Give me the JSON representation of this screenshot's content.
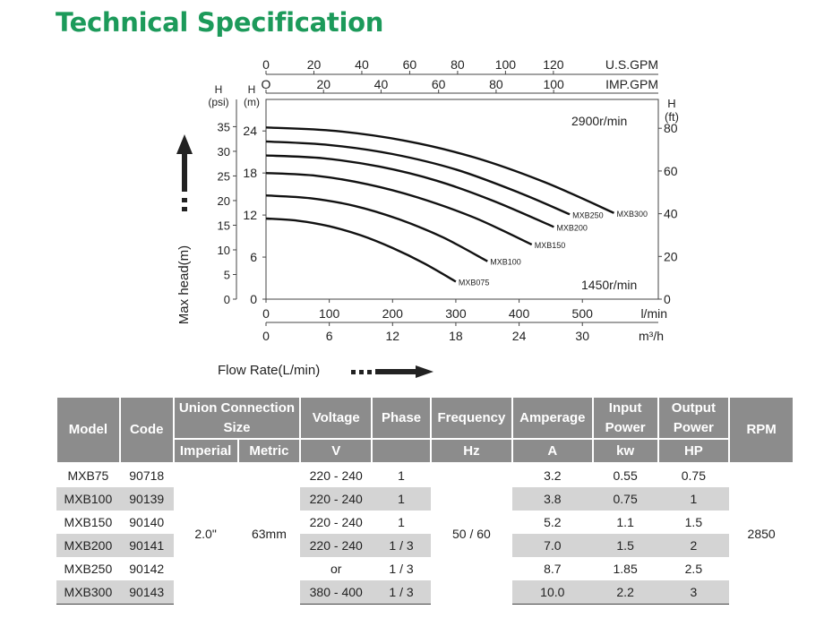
{
  "page": {
    "title": "Technical Specification"
  },
  "chart_data": {
    "type": "line",
    "x_axes": {
      "us_gpm": {
        "label": "U.S.GPM",
        "ticks": [
          "0",
          "20",
          "40",
          "60",
          "80",
          "100",
          "120"
        ],
        "values": [
          0,
          20,
          40,
          60,
          80,
          100,
          120
        ]
      },
      "imp_gpm": {
        "label": "IMP.GPM",
        "ticks": [
          "O",
          "20",
          "40",
          "60",
          "80",
          "100"
        ],
        "values": [
          0,
          20,
          40,
          60,
          80,
          100
        ]
      },
      "lmin": {
        "label": "l/min",
        "ticks": [
          "0",
          "100",
          "200",
          "300",
          "400",
          "500"
        ],
        "values": [
          0,
          100,
          200,
          300,
          400,
          500
        ],
        "range": [
          0,
          620
        ]
      },
      "m3h": {
        "label": "m³/h",
        "ticks": [
          "0",
          "6",
          "12",
          "18",
          "24",
          "30"
        ],
        "values": [
          0,
          6,
          12,
          18,
          24,
          30
        ]
      }
    },
    "y_axes": {
      "psi": {
        "label_top": "H",
        "label_unit": "(psi)",
        "ticks": [
          "0",
          "5",
          "10",
          "15",
          "20",
          "25",
          "30",
          "35"
        ],
        "values": [
          0,
          5,
          10,
          15,
          20,
          25,
          30,
          35
        ]
      },
      "m": {
        "label_top": "H",
        "label_unit": "(m)",
        "ticks": [
          "0",
          "6",
          "12",
          "18",
          "24"
        ],
        "values": [
          0,
          6,
          12,
          18,
          24
        ],
        "range": [
          0,
          28.5
        ]
      },
      "ft": {
        "label_top": "H",
        "label_unit": "(ft)",
        "ticks": [
          "0",
          "20",
          "40",
          "60",
          "80"
        ],
        "values": [
          0,
          20,
          40,
          60,
          80
        ]
      }
    },
    "annotations": {
      "speed_high": "2900r/min",
      "speed_low": "1450r/min"
    },
    "ylabel": "Max head(m)",
    "xlabel": "Flow Rate(L/min)",
    "series": [
      {
        "name": "MXB075",
        "x": [
          0,
          50,
          100,
          150,
          200,
          250,
          300
        ],
        "y": [
          11.5,
          11.2,
          10.4,
          9.1,
          7.3,
          5.1,
          2.5
        ]
      },
      {
        "name": "MXB100",
        "x": [
          0,
          70,
          140,
          210,
          280,
          350
        ],
        "y": [
          14.8,
          14.4,
          13.3,
          11.4,
          8.8,
          5.4
        ]
      },
      {
        "name": "MXB150",
        "x": [
          0,
          80,
          160,
          240,
          330,
          420
        ],
        "y": [
          18.0,
          17.6,
          16.4,
          14.5,
          11.6,
          7.8
        ]
      },
      {
        "name": "MXB200",
        "x": [
          0,
          90,
          180,
          270,
          360,
          455
        ],
        "y": [
          20.5,
          20.1,
          18.9,
          16.9,
          14.0,
          10.3
        ]
      },
      {
        "name": "MXB250",
        "x": [
          0,
          100,
          200,
          300,
          400,
          480
        ],
        "y": [
          22.5,
          22.0,
          20.7,
          18.5,
          15.2,
          12.1
        ]
      },
      {
        "name": "MXB300",
        "x": [
          0,
          110,
          220,
          330,
          440,
          550
        ],
        "y": [
          24.5,
          24.0,
          22.6,
          20.2,
          16.7,
          12.3
        ]
      }
    ]
  },
  "table": {
    "headers": {
      "model": "Model",
      "code": "Code",
      "union": "Union Connection Size",
      "imperial": "Imperial",
      "metric": "Metric",
      "voltage": "Voltage",
      "voltage_unit": "V",
      "phase": "Phase",
      "frequency": "Frequency",
      "frequency_unit": "Hz",
      "amperage": "Amperage",
      "amperage_unit": "A",
      "input_power": "Input Power",
      "input_unit": "kw",
      "output_power": "Output Power",
      "output_unit": "HP",
      "rpm": "RPM"
    },
    "imperial": "2.0\"",
    "metric": "63mm",
    "frequency": "50 / 60",
    "rpm": "2850",
    "rows": [
      {
        "model": "MXB75",
        "code": "90718",
        "voltage": "220 - 240",
        "phase": "1",
        "amperage": "3.2",
        "input": "0.55",
        "output": "0.75"
      },
      {
        "model": "MXB100",
        "code": "90139",
        "voltage": "220 - 240",
        "phase": "1",
        "amperage": "3.8",
        "input": "0.75",
        "output": "1"
      },
      {
        "model": "MXB150",
        "code": "90140",
        "voltage": "220 - 240",
        "phase": "1",
        "amperage": "5.2",
        "input": "1.1",
        "output": "1.5"
      },
      {
        "model": "MXB200",
        "code": "90141",
        "voltage": "220 - 240",
        "phase": "1 / 3",
        "amperage": "7.0",
        "input": "1.5",
        "output": "2"
      },
      {
        "model": "MXB250",
        "code": "90142",
        "voltage": "or",
        "phase": "1 / 3",
        "amperage": "8.7",
        "input": "1.85",
        "output": "2.5"
      },
      {
        "model": "MXB300",
        "code": "90143",
        "voltage": "380 - 400",
        "phase": "1 / 3",
        "amperage": "10.0",
        "input": "2.2",
        "output": "3"
      }
    ]
  }
}
